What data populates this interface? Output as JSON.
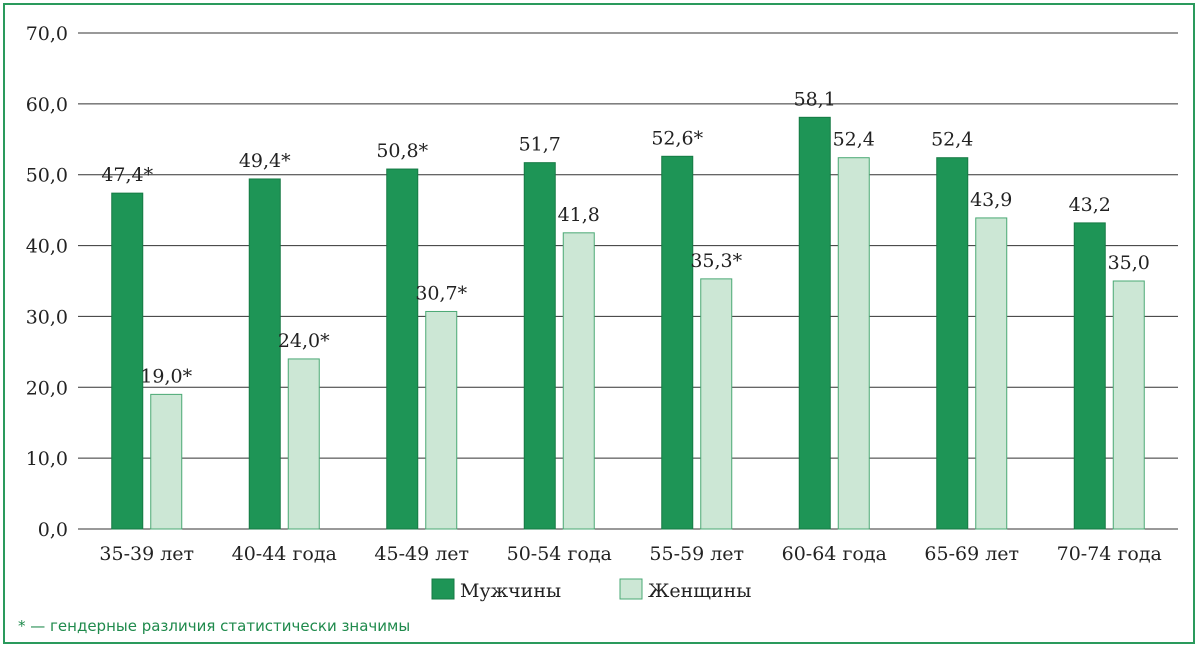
{
  "chart_data": {
    "type": "bar",
    "categories": [
      "35-39 лет",
      "40-44 года",
      "45-49 лет",
      "50-54 года",
      "55-59 лет",
      "60-64 года",
      "65-69 лет",
      "70-74 года"
    ],
    "series": [
      {
        "name": "Мужчины",
        "color": "#1e9556",
        "values": [
          47.4,
          49.4,
          50.8,
          51.7,
          52.6,
          58.1,
          52.4,
          43.2
        ],
        "labels": [
          "47,4*",
          "49,4*",
          "50,8*",
          "51,7",
          "52,6*",
          "58,1",
          "52,4",
          "43,2"
        ]
      },
      {
        "name": "Женщины",
        "color": "#cce7d5",
        "values": [
          19.0,
          24.0,
          30.7,
          41.8,
          35.3,
          52.4,
          43.9,
          35.0
        ],
        "labels": [
          "19,0*",
          "24,0*",
          "30,7*",
          "41,8",
          "35,3*",
          "52,4",
          "43,9",
          "35,0"
        ]
      }
    ],
    "ylim": [
      0,
      70
    ],
    "yticks": [
      0,
      10,
      20,
      30,
      40,
      50,
      60,
      70
    ],
    "ytick_labels": [
      "0,0",
      "10,0",
      "20,0",
      "30,0",
      "40,0",
      "50,0",
      "60,0",
      "70,0"
    ],
    "grid": "horizontal",
    "legend": "bottom-center",
    "footnote": "* — гендерные различия статистически значимы"
  }
}
